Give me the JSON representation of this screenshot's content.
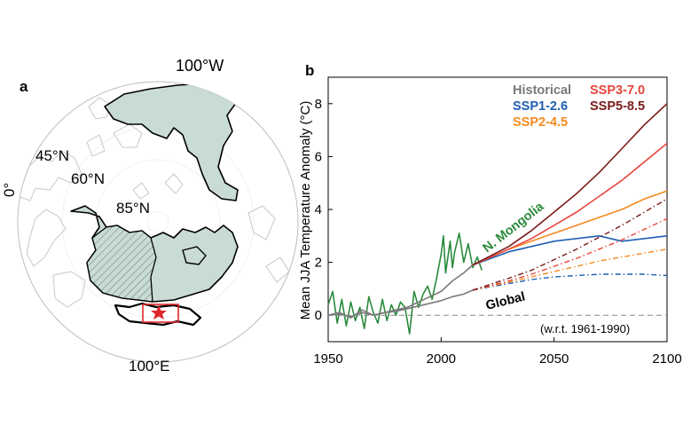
{
  "panel_a": {
    "label": "a",
    "labels": {
      "lon_100w": "100°W",
      "lon_0": "0°",
      "lon_100e": "100°E",
      "lat_45": "45°N",
      "lat_60": "60°N",
      "lat_85": "85°N"
    },
    "colors": {
      "region_fill": "#c9dbd5",
      "coast": "#c8c8c8",
      "outline": "#000000",
      "box": "#e0262a"
    }
  },
  "panel_b": {
    "label": "b",
    "annotations": {
      "mongolia": "N. Mongolia",
      "global": "Global",
      "baseline": "(w.r.t. 1961-1990)"
    }
  },
  "chart_data": {
    "type": "line",
    "title": "",
    "xlabel": "",
    "ylabel": "Mean JJA Temperature Anomaly (°C)",
    "xlim": [
      1950,
      2100
    ],
    "ylim": [
      -1,
      9
    ],
    "xticks": [
      1950,
      2000,
      2050,
      2100
    ],
    "yticks": [
      0,
      2,
      4,
      6,
      8
    ],
    "grid": false,
    "legend_position": "top-right",
    "legend": [
      {
        "label": "Historical",
        "color": "#7a7a7a"
      },
      {
        "label": "SSP3-7.0",
        "color": "#e8453c"
      },
      {
        "label": "SSP1-2.6",
        "color": "#1f5fb4"
      },
      {
        "label": "SSP5-8.5",
        "color": "#7a1b1b"
      },
      {
        "label": "SSP2-4.5",
        "color": "#f58a1f"
      }
    ],
    "series": [
      {
        "name": "N. Mongolia",
        "color": "#2a8a3c",
        "style": "solid",
        "x": [
          1950,
          1952,
          1954,
          1956,
          1958,
          1960,
          1962,
          1964,
          1966,
          1968,
          1970,
          1972,
          1974,
          1976,
          1978,
          1980,
          1982,
          1984,
          1986,
          1988,
          1990,
          1992,
          1994,
          1996,
          1998,
          2000,
          2001,
          2002,
          2004,
          2005,
          2006,
          2008,
          2010,
          2012,
          2014,
          2016,
          2018
        ],
        "y": [
          0.4,
          0.9,
          -0.3,
          0.6,
          -0.4,
          0.5,
          -0.2,
          0.3,
          -0.5,
          0.7,
          0.1,
          -0.3,
          0.6,
          -0.2,
          0.4,
          0.0,
          0.5,
          0.3,
          -0.7,
          0.9,
          0.3,
          0.8,
          1.1,
          0.6,
          1.4,
          2.3,
          3.0,
          1.6,
          2.8,
          1.8,
          2.4,
          3.1,
          2.0,
          2.7,
          1.8,
          2.2,
          1.7
        ]
      },
      {
        "name": "Historical N. Mongolia",
        "color": "#7a7a7a",
        "style": "solid",
        "x": [
          1950,
          1955,
          1960,
          1965,
          1970,
          1975,
          1980,
          1985,
          1990,
          1995,
          2000,
          2005,
          2010,
          2014
        ],
        "y": [
          0.0,
          0.1,
          -0.1,
          0.2,
          0.0,
          0.1,
          0.2,
          0.3,
          0.5,
          0.7,
          0.9,
          1.3,
          1.6,
          1.9
        ]
      },
      {
        "name": "Historical Global",
        "color": "#7a7a7a",
        "style": "solid",
        "x": [
          1950,
          1955,
          1960,
          1965,
          1970,
          1975,
          1980,
          1985,
          1990,
          1995,
          2000,
          2005,
          2010,
          2014
        ],
        "y": [
          0.0,
          0.05,
          -0.05,
          0.1,
          0.0,
          0.1,
          0.15,
          0.25,
          0.35,
          0.45,
          0.55,
          0.7,
          0.8,
          0.95
        ]
      },
      {
        "name": "SSP1-2.6 N. Mongolia",
        "color": "#1f5fb4",
        "style": "solid",
        "x": [
          2014,
          2030,
          2040,
          2050,
          2060,
          2070,
          2080,
          2090,
          2100
        ],
        "y": [
          1.9,
          2.4,
          2.6,
          2.8,
          2.9,
          3.0,
          2.8,
          2.9,
          3.0
        ]
      },
      {
        "name": "SSP2-4.5 N. Mongolia",
        "color": "#f58a1f",
        "style": "solid",
        "x": [
          2014,
          2030,
          2040,
          2050,
          2060,
          2070,
          2080,
          2090,
          2100
        ],
        "y": [
          1.9,
          2.5,
          2.8,
          3.1,
          3.4,
          3.7,
          4.0,
          4.4,
          4.7
        ]
      },
      {
        "name": "SSP3-7.0 N. Mongolia",
        "color": "#e8453c",
        "style": "solid",
        "x": [
          2014,
          2030,
          2040,
          2050,
          2060,
          2070,
          2080,
          2090,
          2100
        ],
        "y": [
          1.9,
          2.5,
          2.9,
          3.4,
          3.9,
          4.5,
          5.1,
          5.8,
          6.5
        ]
      },
      {
        "name": "SSP5-8.5 N. Mongolia",
        "color": "#7a1b1b",
        "style": "solid",
        "x": [
          2014,
          2030,
          2040,
          2050,
          2060,
          2070,
          2080,
          2090,
          2100
        ],
        "y": [
          1.9,
          2.6,
          3.2,
          3.9,
          4.6,
          5.4,
          6.3,
          7.2,
          8.0
        ]
      },
      {
        "name": "SSP1-2.6 Global",
        "color": "#1f5fb4",
        "style": "dashdot",
        "x": [
          2014,
          2030,
          2040,
          2050,
          2060,
          2070,
          2080,
          2090,
          2100
        ],
        "y": [
          0.95,
          1.2,
          1.35,
          1.45,
          1.5,
          1.55,
          1.55,
          1.55,
          1.5
        ]
      },
      {
        "name": "SSP2-4.5 Global",
        "color": "#f58a1f",
        "style": "dashdot",
        "x": [
          2014,
          2030,
          2040,
          2050,
          2060,
          2070,
          2080,
          2090,
          2100
        ],
        "y": [
          0.95,
          1.25,
          1.45,
          1.65,
          1.85,
          2.05,
          2.2,
          2.35,
          2.5
        ]
      },
      {
        "name": "SSP3-7.0 Global",
        "color": "#e8453c",
        "style": "dashdot",
        "x": [
          2014,
          2030,
          2040,
          2050,
          2060,
          2070,
          2080,
          2090,
          2100
        ],
        "y": [
          0.95,
          1.3,
          1.55,
          1.85,
          2.15,
          2.5,
          2.85,
          3.25,
          3.65
        ]
      },
      {
        "name": "SSP5-8.5 Global",
        "color": "#7a1b1b",
        "style": "dashdot",
        "x": [
          2014,
          2030,
          2040,
          2050,
          2060,
          2070,
          2080,
          2090,
          2100
        ],
        "y": [
          0.95,
          1.4,
          1.7,
          2.1,
          2.5,
          2.95,
          3.4,
          3.9,
          4.4
        ]
      }
    ]
  }
}
